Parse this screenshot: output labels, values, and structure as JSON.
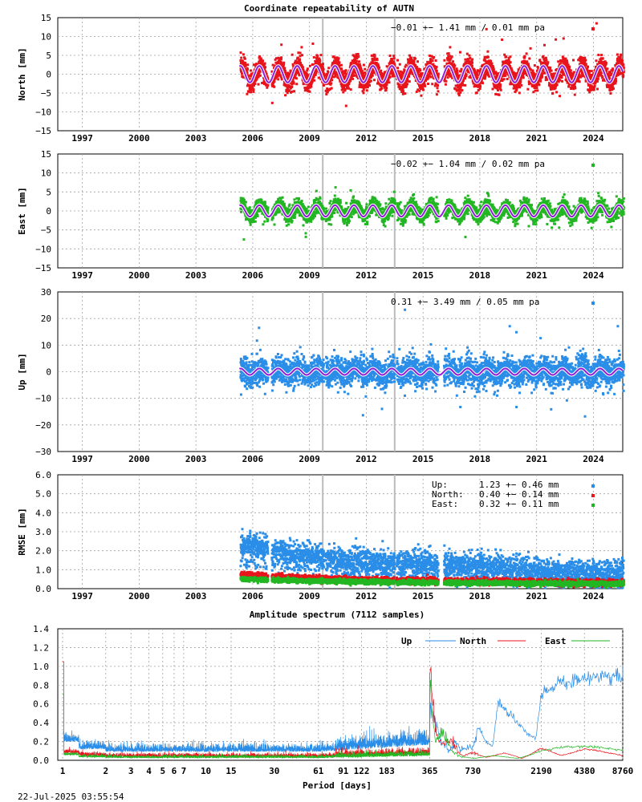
{
  "title": "Coordinate repeatability of AUTN",
  "timestamp": "22-Jul-2025 03:55:54",
  "colors": {
    "north": "#e8141b",
    "east": "#22b622",
    "up": "#2a8ee8",
    "fit": "#8f1fd6",
    "grid": "#a0a0a0",
    "vline": "#bbbbbb"
  },
  "year_ticks": [
    "1997",
    "2000",
    "2003",
    "2006",
    "2009",
    "2012",
    "2015",
    "2018",
    "2021",
    "2024"
  ],
  "data_start_year": 2005.3,
  "data_end_year": 2025.55,
  "gaps": [
    [
      2006.75,
      2006.95
    ],
    [
      2009.72,
      2009.8
    ],
    [
      2013.45,
      2013.55
    ],
    [
      2015.75,
      2016.05
    ]
  ],
  "vertical_lines": [
    2009.7,
    2013.5
  ],
  "panels": [
    {
      "key": "north",
      "ylabel": "North [mm]",
      "ylim": [
        -15,
        15
      ],
      "ticks": [
        "15",
        "10",
        "5",
        "0",
        "−5",
        "−10",
        "−15"
      ],
      "tick_values": [
        15,
        10,
        5,
        0,
        -5,
        -10,
        -15
      ],
      "stats": "−0.01 +− 1.41 mm /  0.01 mm pa",
      "color": "north",
      "spread": 2.0,
      "amp": 2.2,
      "outliers": 6
    },
    {
      "key": "east",
      "ylabel": "East [mm]",
      "ylim": [
        -15,
        15
      ],
      "ticks": [
        "15",
        "10",
        "5",
        "0",
        "−5",
        "−10",
        "−15"
      ],
      "tick_values": [
        15,
        10,
        5,
        0,
        -5,
        -10,
        -15
      ],
      "stats": "−0.02 +− 1.04 mm /  0.02 mm pa",
      "color": "east",
      "spread": 1.4,
      "amp": 1.5,
      "outliers": 4
    },
    {
      "key": "up",
      "ylabel": "Up [mm]",
      "ylim": [
        -30,
        30
      ],
      "ticks": [
        "30",
        "20",
        "10",
        "0",
        "−10",
        "−20",
        "−30"
      ],
      "tick_values": [
        30,
        20,
        10,
        0,
        -10,
        -20,
        -30
      ],
      "stats": " 0.31 +− 3.49 mm /  0.05 mm pa",
      "color": "up",
      "spread": 3.6,
      "amp": 1.2,
      "outliers": 12
    }
  ],
  "rmse": {
    "ylabel": "RMSE [mm]",
    "ylim": [
      0,
      6
    ],
    "ticks": [
      "6.0",
      "5.0",
      "4.0",
      "3.0",
      "2.0",
      "1.0",
      "0.0"
    ],
    "tick_values": [
      6,
      5,
      4,
      3,
      2,
      1,
      0
    ],
    "legend": [
      {
        "name": "Up:",
        "value": "1.23 +− 0.46 mm",
        "color": "up"
      },
      {
        "name": "North:",
        "value": "0.40 +− 0.14 mm",
        "color": "north"
      },
      {
        "name": "East:",
        "value": "0.32 +− 0.11 mm",
        "color": "east"
      }
    ],
    "up_level": [
      [
        2005.3,
        2.3
      ],
      [
        2006.7,
        2.2
      ],
      [
        2007.0,
        1.95
      ],
      [
        2009.0,
        1.7
      ],
      [
        2010.0,
        1.55
      ],
      [
        2012.0,
        1.4
      ],
      [
        2015.0,
        1.3
      ],
      [
        2018.0,
        1.15
      ],
      [
        2021.0,
        0.9
      ],
      [
        2025.5,
        0.8
      ]
    ],
    "north_level": [
      [
        2005.3,
        0.72
      ],
      [
        2007.0,
        0.62
      ],
      [
        2010.0,
        0.5
      ],
      [
        2015.0,
        0.42
      ],
      [
        2020.0,
        0.36
      ],
      [
        2025.5,
        0.32
      ]
    ],
    "east_level": [
      [
        2005.3,
        0.52
      ],
      [
        2007.0,
        0.45
      ],
      [
        2010.0,
        0.38
      ],
      [
        2015.0,
        0.32
      ],
      [
        2020.0,
        0.28
      ],
      [
        2025.5,
        0.26
      ]
    ]
  },
  "spectrum": {
    "title": "Amplitude spectrum (7112 samples)",
    "xlabel": "Period [days]",
    "ylim": [
      0,
      1.4
    ],
    "yticks": [
      "1.4",
      "1.2",
      "1.0",
      "0.8",
      "0.6",
      "0.4",
      "0.2",
      "0.0"
    ],
    "ytick_values": [
      1.4,
      1.2,
      1.0,
      0.8,
      0.6,
      0.4,
      0.2,
      0.0
    ],
    "xticks": [
      "1",
      "2",
      "3",
      "4",
      "5",
      "6",
      "7",
      "10",
      "15",
      "30",
      "61",
      "91",
      "122",
      "183",
      "365",
      "730",
      "2190",
      "4380",
      "8760"
    ],
    "xtick_values": [
      1,
      2,
      3,
      4,
      5,
      6,
      7,
      10,
      15,
      30,
      61,
      91,
      122,
      183,
      365,
      730,
      2190,
      4380,
      8760
    ],
    "legend": [
      {
        "name": "Up",
        "color": "up"
      },
      {
        "name": "North",
        "color": "north"
      },
      {
        "name": "East",
        "color": "east"
      }
    ],
    "up_trend": [
      [
        365,
        0.68
      ],
      [
        420,
        0.25
      ],
      [
        500,
        0.1
      ],
      [
        550,
        0.2
      ],
      [
        600,
        0.12
      ],
      [
        730,
        0.15
      ],
      [
        800,
        0.35
      ],
      [
        900,
        0.2
      ],
      [
        1000,
        0.15
      ],
      [
        1100,
        0.64
      ],
      [
        1300,
        0.5
      ],
      [
        1500,
        0.4
      ],
      [
        1700,
        0.3
      ],
      [
        2000,
        0.22
      ],
      [
        2190,
        0.72
      ],
      [
        3000,
        0.82
      ],
      [
        4380,
        0.87
      ],
      [
        8000,
        0.92
      ]
    ],
    "north_trend": [
      [
        365,
        1.05
      ],
      [
        400,
        0.3
      ],
      [
        450,
        0.15
      ],
      [
        500,
        0.25
      ],
      [
        600,
        0.05
      ],
      [
        730,
        0.08
      ],
      [
        900,
        0.03
      ],
      [
        1200,
        0.08
      ],
      [
        1600,
        0.02
      ],
      [
        2190,
        0.13
      ],
      [
        3000,
        0.05
      ],
      [
        4380,
        0.12
      ],
      [
        8000,
        0.05
      ]
    ],
    "east_trend": [
      [
        365,
        0.75
      ],
      [
        400,
        0.2
      ],
      [
        450,
        0.32
      ],
      [
        520,
        0.1
      ],
      [
        600,
        0.04
      ],
      [
        730,
        0.02
      ],
      [
        1000,
        0.05
      ],
      [
        1500,
        0.02
      ],
      [
        2190,
        0.1
      ],
      [
        3000,
        0.14
      ],
      [
        4380,
        0.15
      ],
      [
        8000,
        0.11
      ]
    ]
  }
}
